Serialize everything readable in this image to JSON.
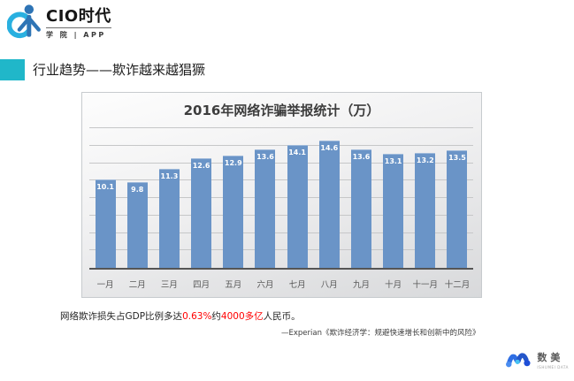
{
  "header": {
    "logo": {
      "brand": "CIO时代",
      "sub": "学 院 | APP"
    }
  },
  "section": {
    "title": "行业趋势——欺诈越来越猖獗",
    "accent_color": "#20b7c9"
  },
  "chart_data": {
    "type": "bar",
    "title": "2016年网络诈骗举报统计（万）",
    "categories": [
      "一月",
      "二月",
      "三月",
      "四月",
      "五月",
      "六月",
      "七月",
      "八月",
      "九月",
      "十月",
      "十一月",
      "十二月"
    ],
    "values": [
      10.1,
      9.8,
      11.3,
      12.6,
      12.9,
      13.6,
      14.1,
      14.6,
      13.6,
      13.1,
      13.2,
      13.5
    ],
    "xlabel": "",
    "ylabel": "",
    "ylim": [
      0,
      16
    ],
    "grid_step": 2,
    "grid": "horizontal",
    "y_tick_labels_visible": false,
    "legend": "none",
    "bar_color": "#6a94c7",
    "value_label_color": "#ffffff"
  },
  "note": {
    "prefix": "网络欺诈损失占GDP比例多达",
    "highlight1": "0.63%",
    "middle": "约",
    "highlight2": "4000多亿",
    "suffix": "人民币。",
    "highlight_color": "#ff0000"
  },
  "attribution": "—Experian《欺诈经济学：规避快速增长和创新中的风险》",
  "footer_logo": {
    "brand": "数美",
    "sub": "ISHUMEI DATA"
  }
}
